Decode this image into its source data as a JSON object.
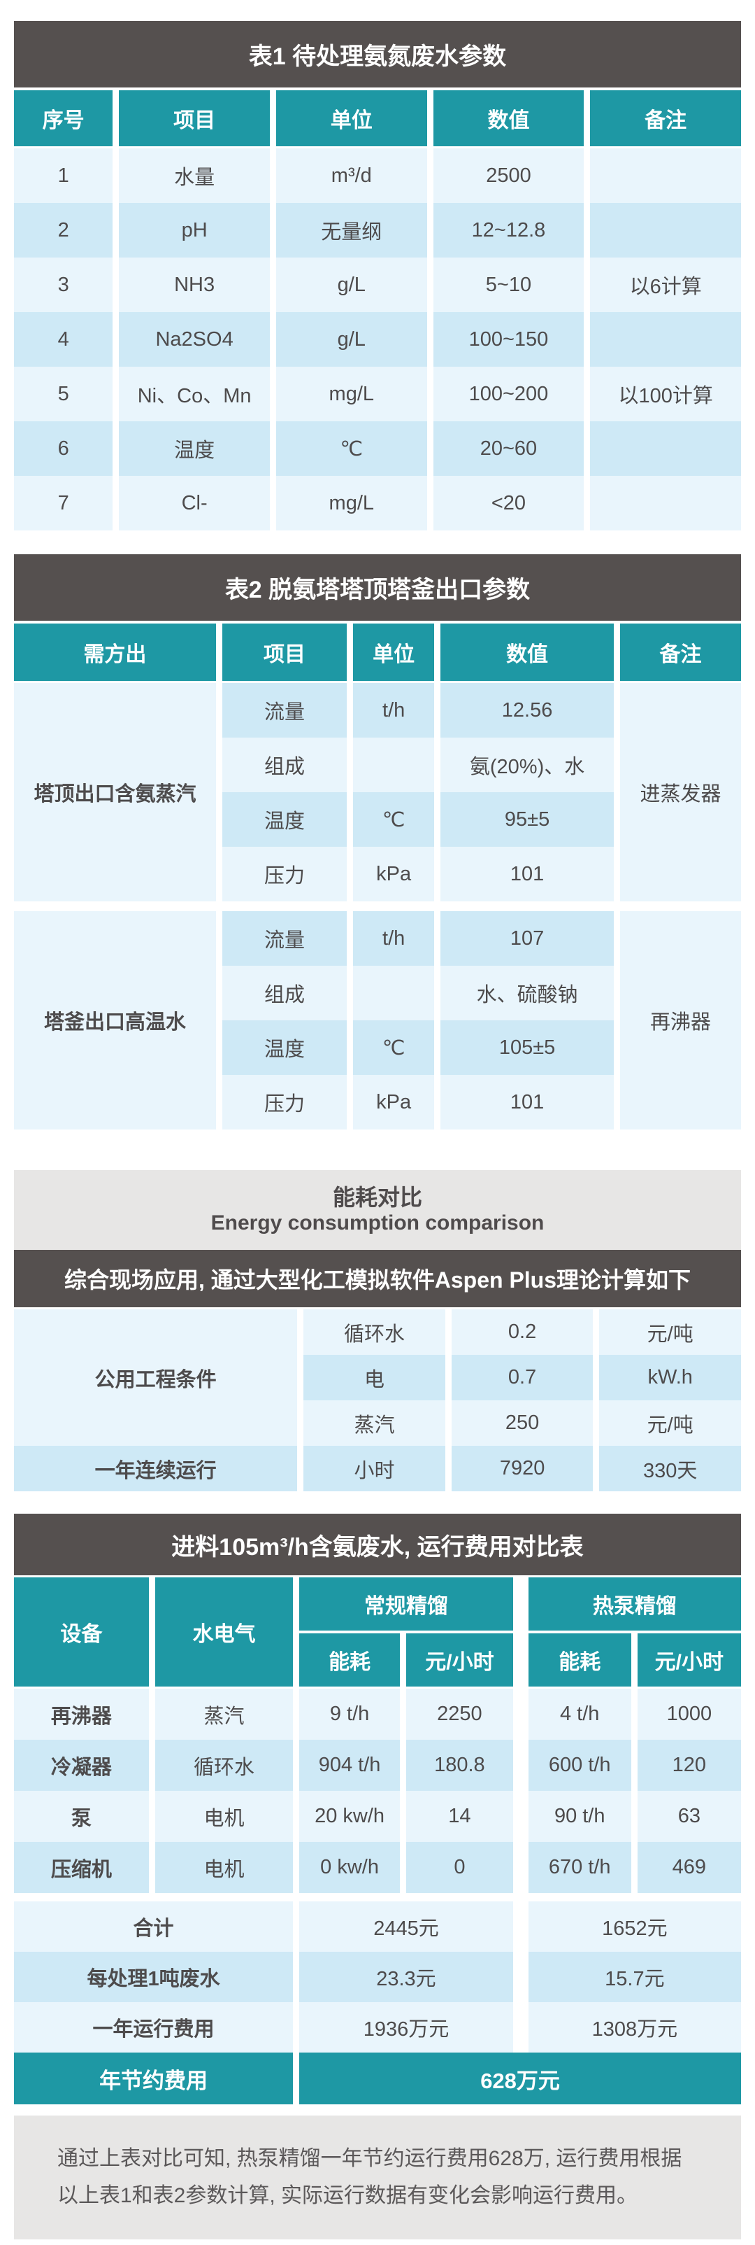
{
  "colors": {
    "teal": "#1E98A4",
    "dark_band": "#55504F",
    "row_light": "#E9F5FC",
    "row_dark": "#CEE9F6",
    "gray_band": "#E7E6E5"
  },
  "table1": {
    "title": "表1  待处理氨氮废水参数",
    "headers": [
      "序号",
      "项目",
      "单位",
      "数值",
      "备注"
    ],
    "rows": [
      [
        "1",
        "水量",
        "m³/d",
        "2500",
        ""
      ],
      [
        "2",
        "pH",
        "无量纲",
        "12~12.8",
        ""
      ],
      [
        "3",
        "NH3",
        "g/L",
        "5~10",
        "以6计算"
      ],
      [
        "4",
        "Na2SO4",
        "g/L",
        "100~150",
        ""
      ],
      [
        "5",
        "Ni、Co、Mn",
        "mg/L",
        "100~200",
        "以100计算"
      ],
      [
        "6",
        "温度",
        "℃",
        "20~60",
        ""
      ],
      [
        "7",
        "Cl-",
        "mg/L",
        "<20",
        ""
      ]
    ]
  },
  "table2": {
    "title": "表2  脱氨塔塔顶塔釜出口参数",
    "headers": [
      "需方出",
      "项目",
      "单位",
      "数值",
      "备注"
    ],
    "groups": [
      {
        "name": "塔顶出口含氨蒸汽",
        "remark": "进蒸发器",
        "rows": [
          [
            "流量",
            "t/h",
            "12.56"
          ],
          [
            "组成",
            "",
            "氨(20%)、水"
          ],
          [
            "温度",
            "℃",
            "95±5"
          ],
          [
            "压力",
            "kPa",
            "101"
          ]
        ]
      },
      {
        "name": "塔釜出口高温水",
        "remark": "再沸器",
        "rows": [
          [
            "流量",
            "t/h",
            "107"
          ],
          [
            "组成",
            "",
            "水、硫酸钠"
          ],
          [
            "温度",
            "℃",
            "105±5"
          ],
          [
            "压力",
            "kPa",
            "101"
          ]
        ]
      }
    ]
  },
  "energy": {
    "title_cn": "能耗对比",
    "title_en": "Energy consumption comparison",
    "subtitle": "综合现场应用, 通过大型化工模拟软件Aspen Plus理论计算如下",
    "utility_label": "公用工程条件",
    "utility_rows": [
      [
        "循环水",
        "0.2",
        "元/吨"
      ],
      [
        "电",
        "0.7",
        "kW.h"
      ],
      [
        "蒸汽",
        "250",
        "元/吨"
      ]
    ],
    "run_row": [
      "一年连续运行",
      "小时",
      "7920",
      "330天"
    ]
  },
  "table4": {
    "title": "进料105m³/h含氨废水, 运行费用对比表",
    "headers": {
      "device": "设备",
      "utility": "水电气",
      "conventional": "常规精馏",
      "heatpump": "热泵精馏",
      "energy": "能耗",
      "cost": "元/小时"
    },
    "rows": [
      [
        "再沸器",
        "蒸汽",
        "9 t/h",
        "2250",
        "4 t/h",
        "1000"
      ],
      [
        "冷凝器",
        "循环水",
        "904 t/h",
        "180.8",
        "600 t/h",
        "120"
      ],
      [
        "泵",
        "电机",
        "20 kw/h",
        "14",
        "90 t/h",
        "63"
      ],
      [
        "压缩机",
        "电机",
        "0 kw/h",
        "0",
        "670 t/h",
        "469"
      ]
    ],
    "summary": [
      {
        "label": "合计",
        "conventional": "2445元",
        "heatpump": "1652元"
      },
      {
        "label": "每处理1吨废水",
        "conventional": "23.3元",
        "heatpump": "15.7元"
      },
      {
        "label": "一年运行费用",
        "conventional": "1936万元",
        "heatpump": "1308万元"
      }
    ],
    "savings": {
      "label": "年节约费用",
      "value": "628万元"
    }
  },
  "footnote": "通过上表对比可知, 热泵精馏一年节约运行费用628万, 运行费用根据以上表1和表2参数计算, 实际运行数据有变化会影响运行费用。"
}
